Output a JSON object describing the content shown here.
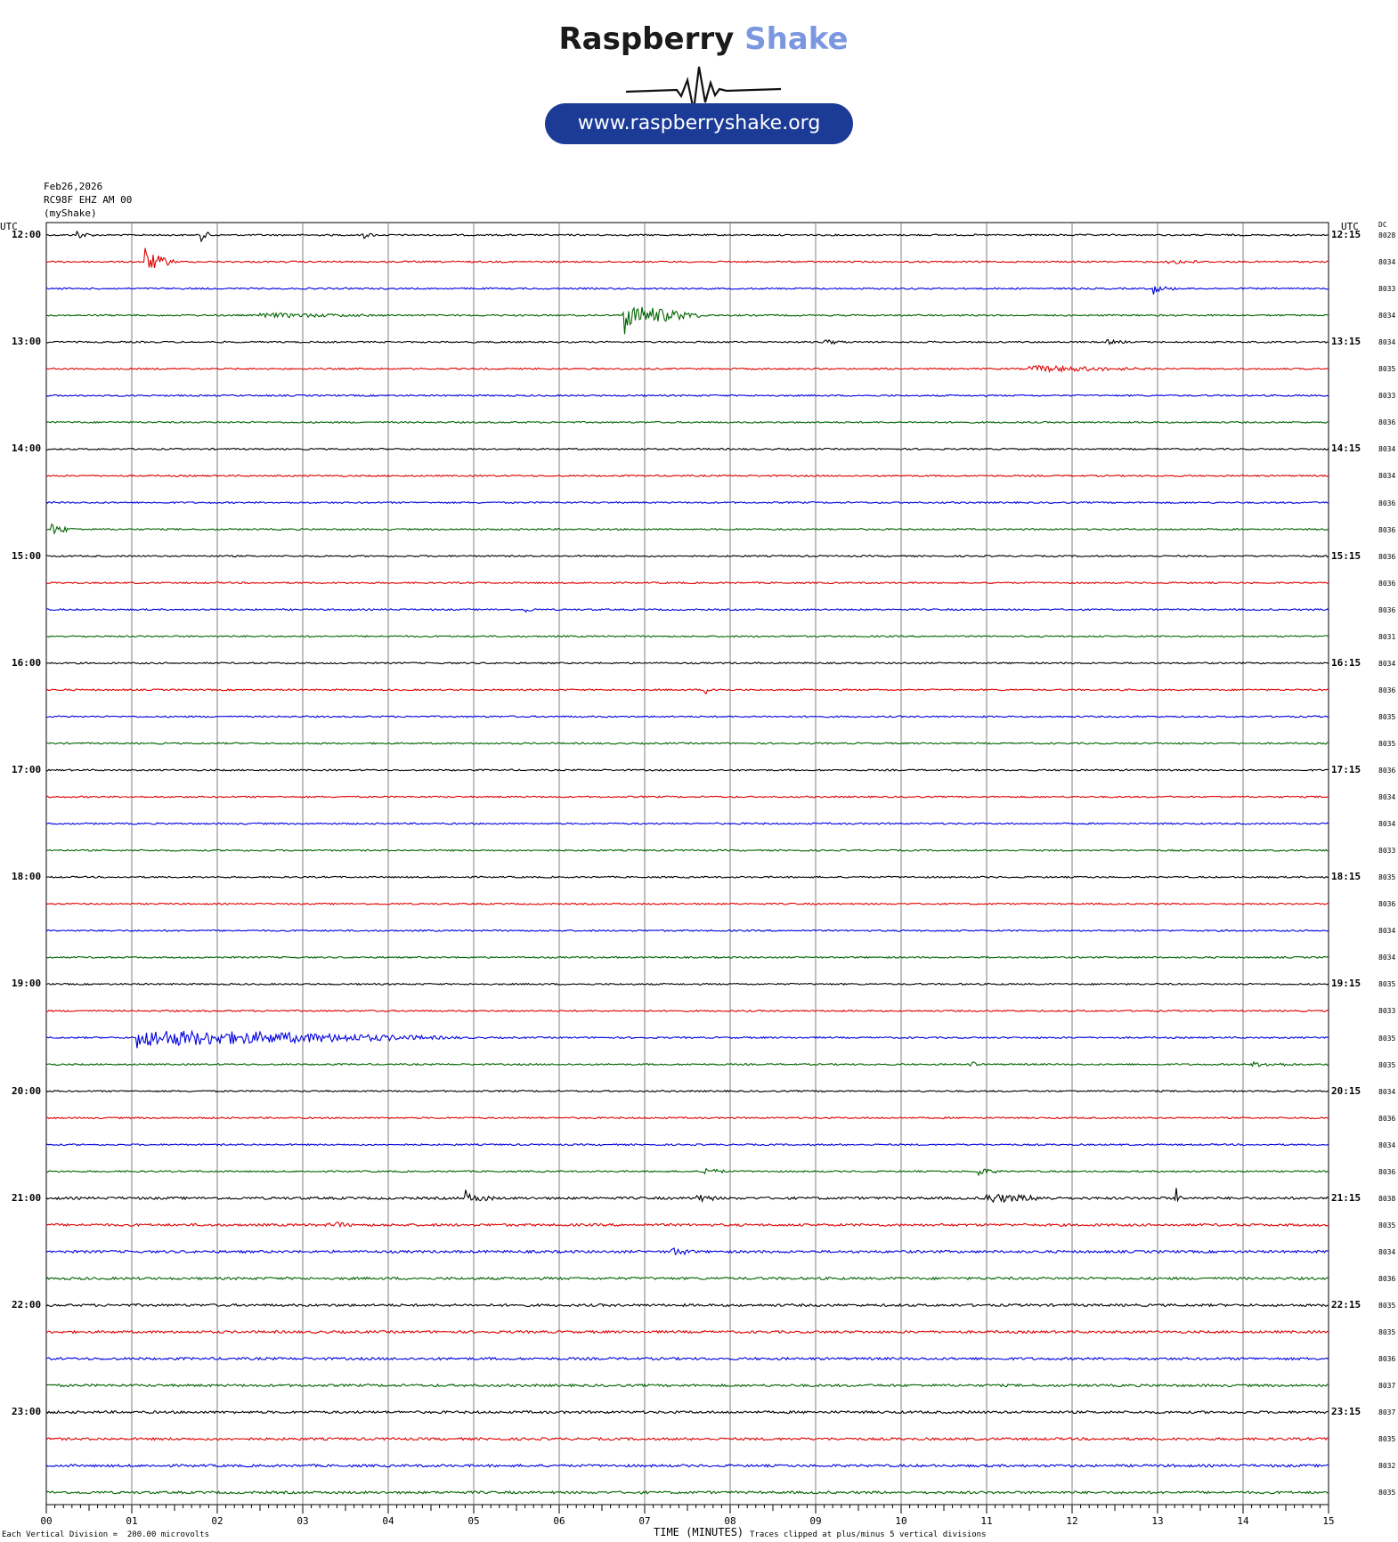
{
  "logo": {
    "brand_part1": "Raspberry",
    "brand_part2": "Shake",
    "url": "www.raspberryshake.org",
    "brand_dark": "#1a1a1a",
    "brand_light": "#7b97e0",
    "pill_color": "#1b3b96"
  },
  "header": {
    "date": "Feb26,2026",
    "station": "RC98F EHZ AM 00",
    "source": "(myShake)"
  },
  "axis": {
    "left_utc": "UTC",
    "right_utc": "UTC",
    "dc_header": "DC",
    "x_title": "TIME (MINUTES)",
    "scale_note": "Each Vertical Division =  200.00 microvolts",
    "clip_note": "Traces clipped at plus/minus 5 vertical divisions"
  },
  "chart_data": {
    "type": "line",
    "xlabel": "TIME (MINUTES)",
    "xlim": [
      0,
      15
    ],
    "x_ticks": [
      "00",
      "01",
      "02",
      "03",
      "04",
      "05",
      "06",
      "07",
      "08",
      "09",
      "10",
      "11",
      "12",
      "13",
      "14",
      "15"
    ],
    "colors": [
      "#000000",
      "#e00000",
      "#0000e0",
      "#006400"
    ],
    "left_labels": [
      "12:00",
      "13:00",
      "14:00",
      "15:00",
      "16:00",
      "17:00",
      "18:00",
      "19:00",
      "20:00",
      "21:00",
      "22:00",
      "23:00"
    ],
    "right_labels": [
      "12:15",
      "13:15",
      "14:15",
      "15:15",
      "16:15",
      "17:15",
      "18:15",
      "19:15",
      "20:15",
      "21:15",
      "22:15",
      "23:15"
    ],
    "dc_values": [
      "8028",
      "8034",
      "8033",
      "8034",
      "8034",
      "8035",
      "8033",
      "8036",
      "8034",
      "8034",
      "8036",
      "8036",
      "8036",
      "8036",
      "8036",
      "8031",
      "8034",
      "8036",
      "8035",
      "8035",
      "8036",
      "8034",
      "8034",
      "8033",
      "8035",
      "8036",
      "8034",
      "8034",
      "8035",
      "8033",
      "8035",
      "8035",
      "8034",
      "8036",
      "8034",
      "8036",
      "8038",
      "8035",
      "8034",
      "8036",
      "8035",
      "8035",
      "8036",
      "8037",
      "8037",
      "8035",
      "8032",
      "8035"
    ],
    "events": [
      {
        "trace": 0,
        "minute": 0.35,
        "amp": 3,
        "dur": 0.25
      },
      {
        "trace": 0,
        "minute": 1.8,
        "amp": 4,
        "dur": 0.2
      },
      {
        "trace": 0,
        "minute": 3.7,
        "amp": 2,
        "dur": 0.2
      },
      {
        "trace": 1,
        "minute": 1.15,
        "amp": 10,
        "dur": 0.4
      },
      {
        "trace": 1,
        "minute": 13.1,
        "amp": 2,
        "dur": 0.5
      },
      {
        "trace": 2,
        "minute": 12.95,
        "amp": 3,
        "dur": 0.3
      },
      {
        "trace": 3,
        "minute": 6.75,
        "amp": 12,
        "dur": 1.0
      },
      {
        "trace": 3,
        "minute": 2.5,
        "amp": 2,
        "dur": 1.5
      },
      {
        "trace": 4,
        "minute": 9.1,
        "amp": 2,
        "dur": 0.3
      },
      {
        "trace": 4,
        "minute": 12.4,
        "amp": 2,
        "dur": 0.3
      },
      {
        "trace": 5,
        "minute": 11.5,
        "amp": 3,
        "dur": 1.5
      },
      {
        "trace": 11,
        "minute": 0.05,
        "amp": 5,
        "dur": 0.3
      },
      {
        "trace": 14,
        "minute": 5.6,
        "amp": 2,
        "dur": 0.15
      },
      {
        "trace": 17,
        "minute": 7.7,
        "amp": 2,
        "dur": 0.3
      },
      {
        "trace": 30,
        "minute": 1.05,
        "amp": 9,
        "dur": 4.0
      },
      {
        "trace": 31,
        "minute": 10.8,
        "amp": 6,
        "dur": 0.1
      },
      {
        "trace": 31,
        "minute": 14.1,
        "amp": 2,
        "dur": 0.6
      },
      {
        "trace": 35,
        "minute": 7.7,
        "amp": 3,
        "dur": 0.3
      },
      {
        "trace": 35,
        "minute": 10.9,
        "amp": 3,
        "dur": 0.3
      },
      {
        "trace": 36,
        "minute": 4.9,
        "amp": 4,
        "dur": 0.4
      },
      {
        "trace": 36,
        "minute": 7.6,
        "amp": 3,
        "dur": 0.3
      },
      {
        "trace": 36,
        "minute": 11.0,
        "amp": 4,
        "dur": 0.9
      },
      {
        "trace": 36,
        "minute": 13.2,
        "amp": 8,
        "dur": 0.1
      },
      {
        "trace": 37,
        "minute": 3.3,
        "amp": 3,
        "dur": 0.3
      },
      {
        "trace": 38,
        "minute": 7.3,
        "amp": 4,
        "dur": 0.3
      }
    ]
  }
}
